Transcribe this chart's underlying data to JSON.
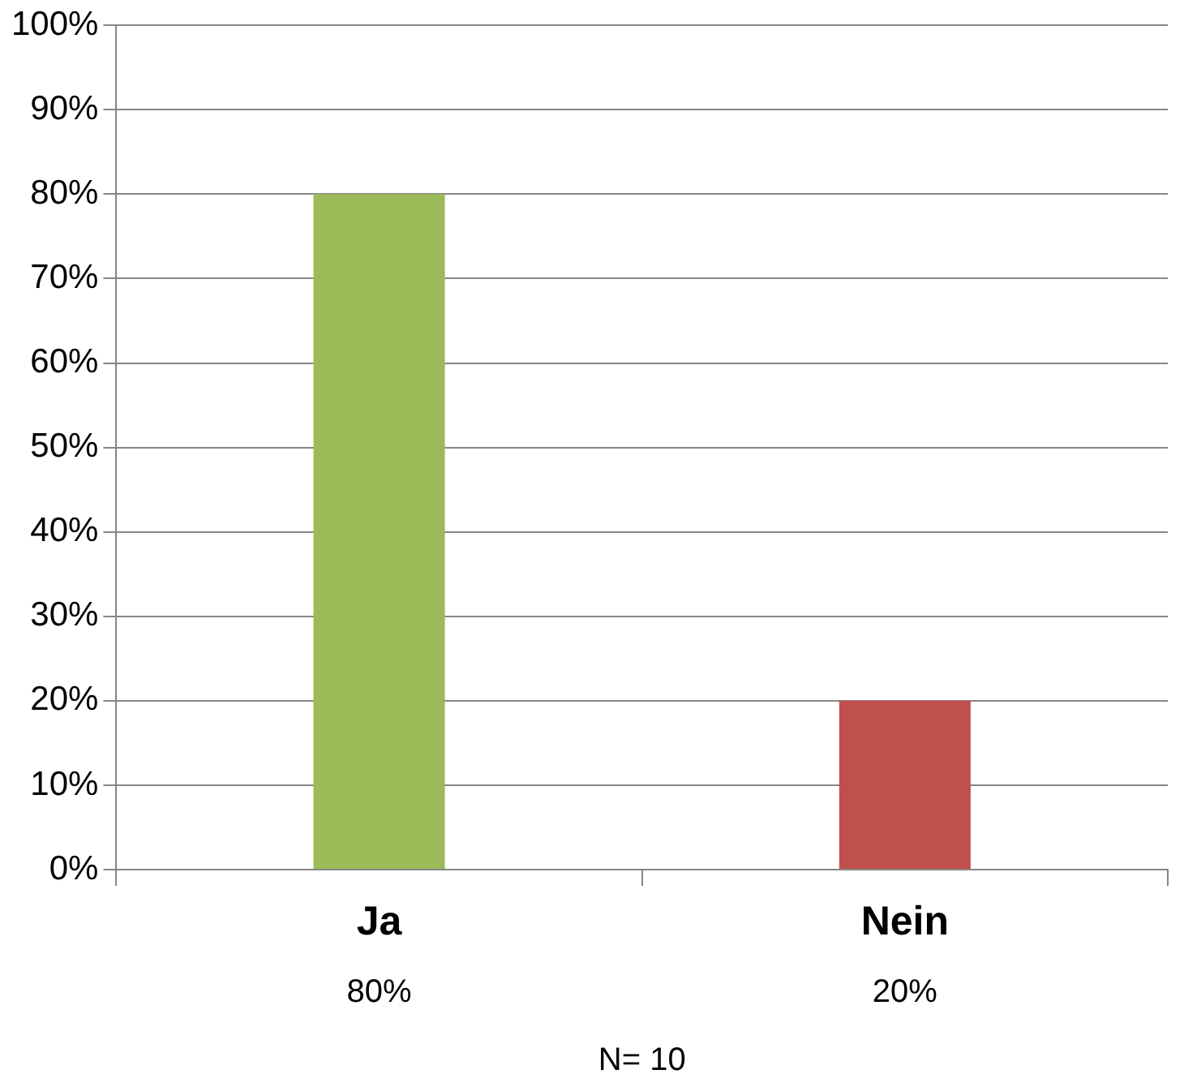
{
  "chart_data": {
    "type": "bar",
    "categories": [
      "Ja",
      "Nein"
    ],
    "values": [
      80,
      20
    ],
    "colors": [
      "#9bbb59",
      "#c0504d"
    ],
    "value_labels": [
      "80%",
      "20%"
    ],
    "ylim": [
      0,
      100
    ],
    "yticks": [
      {
        "value": 0,
        "label": "0%"
      },
      {
        "value": 10,
        "label": "10%"
      },
      {
        "value": 20,
        "label": "20%"
      },
      {
        "value": 30,
        "label": "30%"
      },
      {
        "value": 40,
        "label": "40%"
      },
      {
        "value": 50,
        "label": "50%"
      },
      {
        "value": 60,
        "label": "60%"
      },
      {
        "value": 70,
        "label": "70%"
      },
      {
        "value": 80,
        "label": "80%"
      },
      {
        "value": 90,
        "label": "90%"
      },
      {
        "value": 100,
        "label": "100%"
      }
    ],
    "grid": "y",
    "annotations": [
      "N= 10"
    ]
  }
}
